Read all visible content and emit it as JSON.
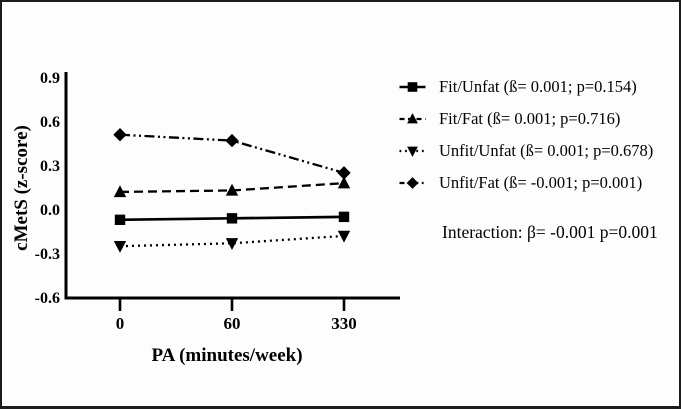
{
  "figure": {
    "background": "#fdfdfd",
    "border_color": "#1c1c1c",
    "ink_color": "#000000"
  },
  "chart_data": {
    "type": "line",
    "title": "",
    "xlabel": "PA (minutes/week)",
    "ylabel": "cMetS (z-score)",
    "x_categories": [
      "0",
      "60",
      "330"
    ],
    "y_ticks": [
      "0.9",
      "0.6",
      "0.3",
      "0.0",
      "-0.3",
      "-0.6"
    ],
    "ylim": [
      -0.6,
      0.9
    ],
    "grid": false,
    "legend_position": "right",
    "series": [
      {
        "name": "Fit/Unfat",
        "label": "Fit/Unfat (ß= 0.001; p=0.154)",
        "values": [
          -0.06,
          -0.05,
          -0.04
        ],
        "marker": "square",
        "line_style": "solid",
        "color": "#000000"
      },
      {
        "name": "Fit/Fat",
        "label": "Fit/Fat (ß= 0.001; p=0.716)",
        "values": [
          0.13,
          0.14,
          0.19
        ],
        "marker": "triangle-up",
        "line_style": "dashed",
        "color": "#000000"
      },
      {
        "name": "Unfit/Unfat",
        "label": "Unfit/Unfat (ß= 0.001; p=0.678)",
        "values": [
          -0.24,
          -0.22,
          -0.17
        ],
        "marker": "triangle-down",
        "line_style": "dotted",
        "color": "#000000"
      },
      {
        "name": "Unfit/Fat",
        "label": "Unfit/Fat (ß= -0.001; p=0.001)",
        "values": [
          0.52,
          0.48,
          0.26
        ],
        "marker": "diamond",
        "line_style": "dash-dot-dot",
        "color": "#000000"
      }
    ],
    "annotation": "Interaction: β= -0.001 p=0.001"
  }
}
